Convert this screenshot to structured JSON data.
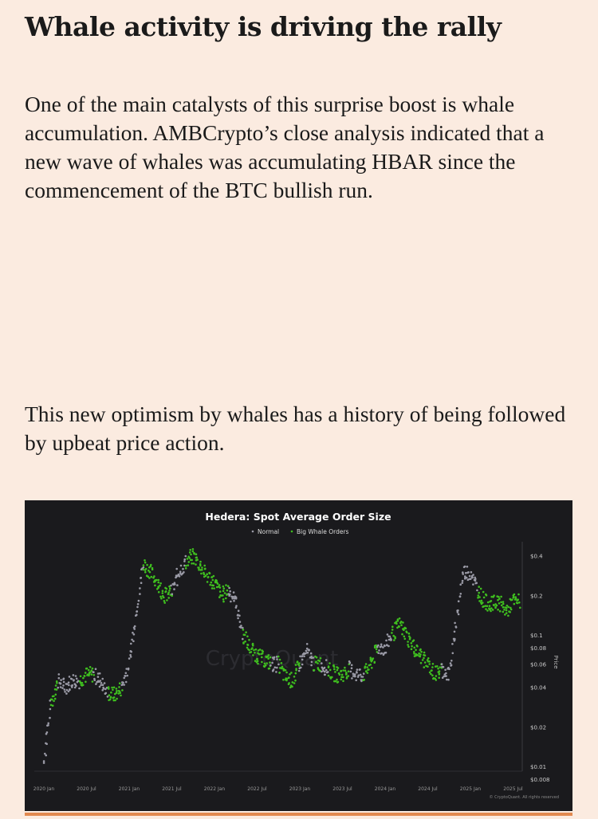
{
  "article": {
    "heading": "Whale activity is driving the rally",
    "paragraph1": "One of the main catalysts of this surprise boost is whale accumulation. AMBCrypto’s close analysis indicated that a new wave of whales was accumulating HBAR since the commencement of the BTC bullish run.",
    "paragraph2": "This new optimism by whales has a history of being followed by upbeat price action."
  },
  "chart_data": {
    "type": "scatter",
    "title": "Hedera: Spot Average Order Size",
    "legend": [
      {
        "name": "Normal",
        "color": "#9a9aa6"
      },
      {
        "name": "Big Whale Orders",
        "color": "#3fbf1f"
      }
    ],
    "legend_position": "top-center",
    "ylabel": "Price",
    "yscale": "log",
    "ylim": [
      0.008,
      0.45
    ],
    "yticks": [
      {
        "value": 0.4,
        "label": "$0.4"
      },
      {
        "value": 0.2,
        "label": "$0.2"
      },
      {
        "value": 0.1,
        "label": "$0.1"
      },
      {
        "value": 0.08,
        "label": "$0.08"
      },
      {
        "value": 0.06,
        "label": "$0.06"
      },
      {
        "value": 0.04,
        "label": "$0.04"
      },
      {
        "value": 0.02,
        "label": "$0.02"
      },
      {
        "value": 0.01,
        "label": "$0.01"
      },
      {
        "value": 0.008,
        "label": "$0.008"
      }
    ],
    "xticks": [
      "2020 Jan",
      "2020 Jul",
      "2021 Jan",
      "2021 Jul",
      "2022 Jan",
      "2022 Jul",
      "2023 Jan",
      "2023 Jul",
      "2024 Jan",
      "2024 Jul",
      "2025 Jan",
      "2025 Jul"
    ],
    "x_start": "2020 Jan",
    "x_step": "month",
    "price": [
      0.011,
      0.03,
      0.045,
      0.04,
      0.045,
      0.045,
      0.05,
      0.05,
      0.045,
      0.036,
      0.035,
      0.04,
      0.06,
      0.15,
      0.35,
      0.3,
      0.25,
      0.2,
      0.21,
      0.3,
      0.36,
      0.4,
      0.34,
      0.28,
      0.25,
      0.2,
      0.22,
      0.18,
      0.1,
      0.08,
      0.07,
      0.065,
      0.06,
      0.06,
      0.047,
      0.045,
      0.06,
      0.075,
      0.06,
      0.06,
      0.055,
      0.05,
      0.05,
      0.055,
      0.05,
      0.05,
      0.06,
      0.08,
      0.08,
      0.1,
      0.12,
      0.1,
      0.08,
      0.07,
      0.06,
      0.05,
      0.055,
      0.05,
      0.12,
      0.3,
      0.3,
      0.22,
      0.18,
      0.17,
      0.18,
      0.15,
      0.18
    ],
    "whale": [
      0,
      1,
      0,
      0,
      0,
      1,
      1,
      0,
      0,
      1,
      1,
      0,
      0,
      0,
      1,
      1,
      1,
      1,
      0,
      0,
      1,
      1,
      1,
      1,
      1,
      1,
      0,
      0,
      1,
      1,
      1,
      1,
      0,
      1,
      1,
      1,
      0,
      0,
      1,
      0,
      1,
      1,
      1,
      0,
      0,
      1,
      1,
      0,
      0,
      1,
      1,
      1,
      1,
      1,
      1,
      1,
      0,
      0,
      0,
      0,
      0,
      1,
      1,
      1,
      1,
      1,
      1
    ],
    "credit": "© CryptoQuant. All rights reserved",
    "watermark": "CryptoQuant"
  }
}
